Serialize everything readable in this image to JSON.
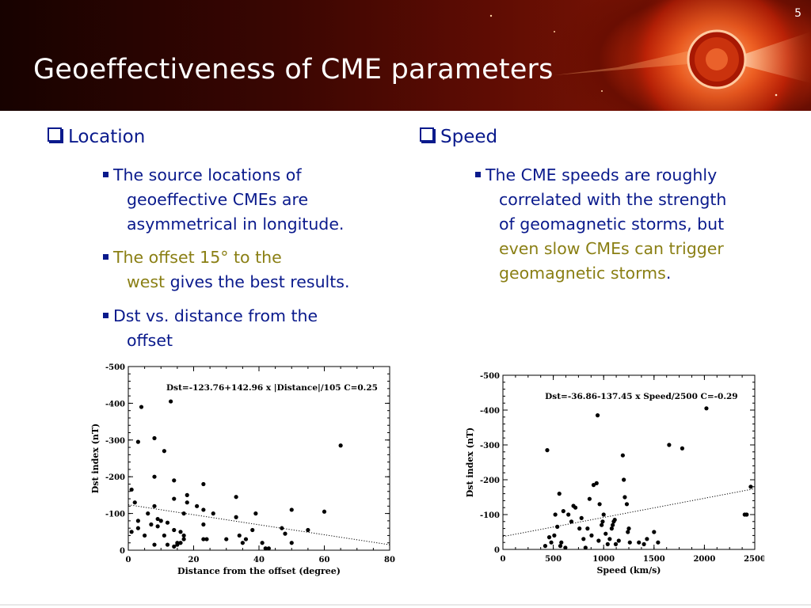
{
  "slide": {
    "number": "5",
    "title": "Geoeffectiveness of CME parameters"
  },
  "left": {
    "heading": "Location",
    "bullet1": [
      "The source locations of",
      "geoeffective CMEs are",
      "asymmetrical in longitude."
    ],
    "bullet2": {
      "line1_highlight": "The offset 15° to the",
      "line2_highlight": "west",
      "line2_rest": " gives the best results."
    },
    "bullet3": [
      "Dst vs. distance from the",
      "offset"
    ]
  },
  "right": {
    "heading": "Speed",
    "bullet1": {
      "line1": "The CME speeds are roughly",
      "line2": "correlated with the strength",
      "line3": "of geomagnetic storms, but",
      "line4_highlight": "even slow CMEs can trigger",
      "line5_highlight": "geomagnetic storms",
      "line5_rest": "."
    }
  },
  "colors": {
    "text": "#0a1a8c",
    "highlight": "#8a7f14"
  },
  "chart_data": [
    {
      "type": "scatter",
      "annotation": "Dst=-123.76+142.96 x |Distance|/105  C=0.25",
      "xlabel": "Distance from the offset (degree)",
      "ylabel": "Dst index (nT)",
      "xlim": [
        0,
        80
      ],
      "ylim": [
        0,
        -500
      ],
      "xticks": [
        "0",
        "20",
        "40",
        "60",
        "80"
      ],
      "yticks": [
        "0",
        "-100",
        "-200",
        "-300",
        "-400",
        "-500"
      ],
      "fit": {
        "intercept": -123.76,
        "slope_per_unit": 1.3615
      },
      "points": [
        [
          1,
          -165
        ],
        [
          1,
          -50
        ],
        [
          2,
          -130
        ],
        [
          3,
          -295
        ],
        [
          3,
          -80
        ],
        [
          3,
          -60
        ],
        [
          4,
          -390
        ],
        [
          5,
          -40
        ],
        [
          6,
          -100
        ],
        [
          7,
          -70
        ],
        [
          8,
          -305
        ],
        [
          8,
          -200
        ],
        [
          8,
          -120
        ],
        [
          8,
          -15
        ],
        [
          9,
          -85
        ],
        [
          9,
          -65
        ],
        [
          10,
          -80
        ],
        [
          11,
          -270
        ],
        [
          11,
          -40
        ],
        [
          12,
          -75
        ],
        [
          12,
          -15
        ],
        [
          13,
          -405
        ],
        [
          14,
          -190
        ],
        [
          14,
          -140
        ],
        [
          14,
          -55
        ],
        [
          14,
          -10
        ],
        [
          15,
          -20
        ],
        [
          15,
          -15
        ],
        [
          16,
          -50
        ],
        [
          16,
          -20
        ],
        [
          17,
          -100
        ],
        [
          17,
          -40
        ],
        [
          17,
          -30
        ],
        [
          18,
          -130
        ],
        [
          18,
          -150
        ],
        [
          21,
          -120
        ],
        [
          23,
          -180
        ],
        [
          23,
          -110
        ],
        [
          23,
          -70
        ],
        [
          23,
          -30
        ],
        [
          24,
          -30
        ],
        [
          26,
          -100
        ],
        [
          30,
          -30
        ],
        [
          33,
          -145
        ],
        [
          33,
          -90
        ],
        [
          34,
          -40
        ],
        [
          35,
          -20
        ],
        [
          36,
          -30
        ],
        [
          38,
          -55
        ],
        [
          39,
          -100
        ],
        [
          41,
          -20
        ],
        [
          42,
          -5
        ],
        [
          43,
          -5
        ],
        [
          47,
          -60
        ],
        [
          48,
          -45
        ],
        [
          50,
          -20
        ],
        [
          50,
          -110
        ],
        [
          55,
          -55
        ],
        [
          60,
          -105
        ],
        [
          65,
          -285
        ]
      ]
    },
    {
      "type": "scatter",
      "annotation": "Dst=-36.86-137.45 x Speed/2500  C=-0.29",
      "xlabel": "Speed (km/s)",
      "ylabel": "Dst index (nT)",
      "xlim": [
        0,
        2500
      ],
      "ylim": [
        0,
        -500
      ],
      "xticks": [
        "0",
        "500",
        "1000",
        "1500",
        "2000",
        "2500"
      ],
      "yticks": [
        "0",
        "-100",
        "-200",
        "-300",
        "-400",
        "-500"
      ],
      "fit": {
        "intercept": -36.86,
        "slope_per_unit": -0.05498
      },
      "points": [
        [
          420,
          -10
        ],
        [
          440,
          -285
        ],
        [
          460,
          -35
        ],
        [
          480,
          -20
        ],
        [
          510,
          -40
        ],
        [
          520,
          -100
        ],
        [
          540,
          -65
        ],
        [
          560,
          -160
        ],
        [
          570,
          -10
        ],
        [
          580,
          -20
        ],
        [
          600,
          -110
        ],
        [
          620,
          -5
        ],
        [
          650,
          -100
        ],
        [
          680,
          -80
        ],
        [
          700,
          -125
        ],
        [
          720,
          -120
        ],
        [
          760,
          -60
        ],
        [
          780,
          -90
        ],
        [
          800,
          -30
        ],
        [
          820,
          -5
        ],
        [
          840,
          -60
        ],
        [
          860,
          -145
        ],
        [
          880,
          -40
        ],
        [
          900,
          -185
        ],
        [
          930,
          -190
        ],
        [
          940,
          -385
        ],
        [
          950,
          -25
        ],
        [
          960,
          -130
        ],
        [
          980,
          -70
        ],
        [
          990,
          -80
        ],
        [
          1000,
          -100
        ],
        [
          1020,
          -45
        ],
        [
          1040,
          -15
        ],
        [
          1060,
          -30
        ],
        [
          1080,
          -60
        ],
        [
          1090,
          -70
        ],
        [
          1100,
          -80
        ],
        [
          1110,
          -85
        ],
        [
          1120,
          -15
        ],
        [
          1150,
          -25
        ],
        [
          1190,
          -270
        ],
        [
          1200,
          -200
        ],
        [
          1210,
          -150
        ],
        [
          1230,
          -130
        ],
        [
          1240,
          -50
        ],
        [
          1250,
          -60
        ],
        [
          1260,
          -20
        ],
        [
          1350,
          -20
        ],
        [
          1400,
          -15
        ],
        [
          1430,
          -30
        ],
        [
          1500,
          -50
        ],
        [
          1540,
          -20
        ],
        [
          1650,
          -300
        ],
        [
          1780,
          -290
        ],
        [
          2020,
          -405
        ],
        [
          2400,
          -100
        ],
        [
          2420,
          -100
        ],
        [
          2460,
          -180
        ]
      ]
    }
  ]
}
